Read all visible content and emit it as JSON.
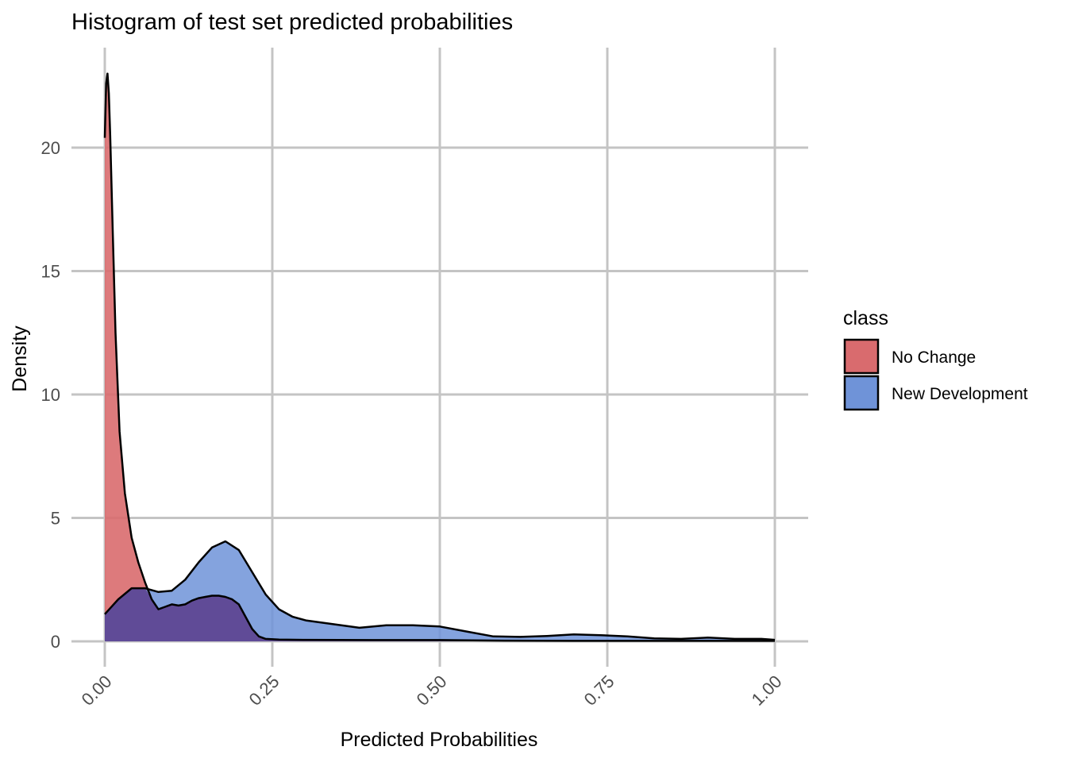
{
  "chart_data": {
    "type": "area",
    "subtype": "density",
    "title": "Histogram of test set predicted probabilities",
    "xlabel": "Predicted Probabilities",
    "ylabel": "Density",
    "xlim": [
      0,
      1
    ],
    "ylim": [
      0,
      23
    ],
    "x_ticks": [
      "0.00",
      "0.25",
      "0.50",
      "0.75",
      "1.00"
    ],
    "y_ticks": [
      "0",
      "5",
      "10",
      "15",
      "20"
    ],
    "x_tick_values": [
      0,
      0.25,
      0.5,
      0.75,
      1.0
    ],
    "y_tick_values": [
      0,
      5,
      10,
      15,
      20
    ],
    "grid": true,
    "legend": {
      "title": "class",
      "position": "right"
    },
    "series": [
      {
        "name": "No Change",
        "color": "#d96b6e",
        "x": [
          0.0,
          0.002,
          0.004,
          0.006,
          0.008,
          0.012,
          0.016,
          0.022,
          0.03,
          0.04,
          0.05,
          0.06,
          0.07,
          0.08,
          0.09,
          0.1,
          0.11,
          0.12,
          0.13,
          0.14,
          0.15,
          0.16,
          0.17,
          0.18,
          0.19,
          0.2,
          0.21,
          0.22,
          0.23,
          0.24,
          0.26,
          0.3,
          0.4,
          0.5,
          0.6,
          0.7,
          0.8,
          0.9,
          1.0
        ],
        "y": [
          20.4,
          22.6,
          23.0,
          22.2,
          20.5,
          16.5,
          12.5,
          8.5,
          6.0,
          4.2,
          3.2,
          2.4,
          1.7,
          1.3,
          1.4,
          1.5,
          1.45,
          1.5,
          1.65,
          1.75,
          1.8,
          1.85,
          1.85,
          1.8,
          1.7,
          1.5,
          1.0,
          0.5,
          0.2,
          0.1,
          0.07,
          0.06,
          0.05,
          0.05,
          0.03,
          0.02,
          0.02,
          0.02,
          0.02
        ]
      },
      {
        "name": "New Development",
        "color": "#6f93d8",
        "x": [
          0.0,
          0.02,
          0.04,
          0.06,
          0.08,
          0.1,
          0.12,
          0.14,
          0.16,
          0.18,
          0.2,
          0.22,
          0.24,
          0.26,
          0.28,
          0.3,
          0.34,
          0.38,
          0.42,
          0.46,
          0.5,
          0.54,
          0.58,
          0.62,
          0.66,
          0.7,
          0.74,
          0.78,
          0.82,
          0.86,
          0.9,
          0.94,
          0.98,
          1.0
        ],
        "y": [
          1.1,
          1.7,
          2.15,
          2.15,
          2.0,
          2.05,
          2.5,
          3.2,
          3.8,
          4.05,
          3.7,
          2.8,
          1.9,
          1.3,
          1.0,
          0.85,
          0.7,
          0.55,
          0.65,
          0.65,
          0.6,
          0.4,
          0.2,
          0.18,
          0.22,
          0.28,
          0.25,
          0.2,
          0.12,
          0.1,
          0.15,
          0.1,
          0.1,
          0.06
        ]
      }
    ]
  }
}
